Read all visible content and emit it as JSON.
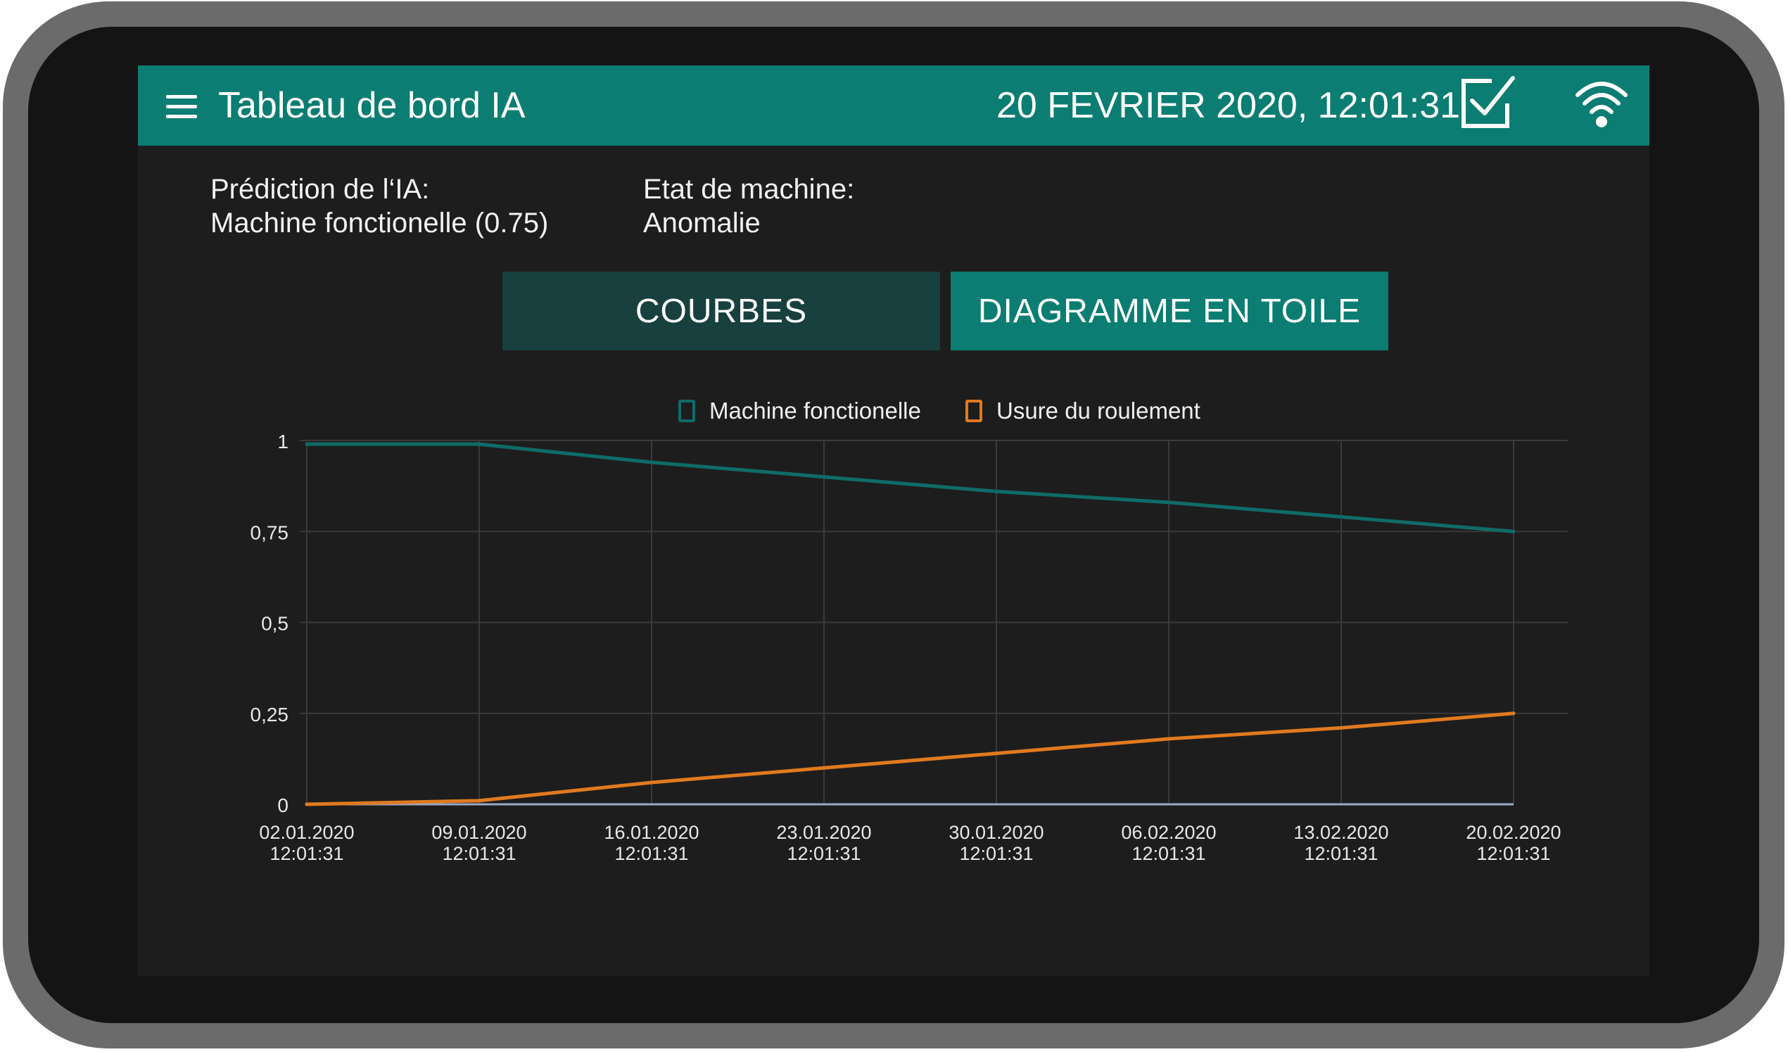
{
  "header": {
    "title": "Tableau de bord IA",
    "datetime": "20 FEVRIER 2020, 12:01:31"
  },
  "info": {
    "prediction_label": "Prédiction de l‘IA:",
    "prediction_value": "Machine fonctionelle (0.75)",
    "state_label": "Etat de machine:",
    "state_value": "Anomalie"
  },
  "tabs": [
    {
      "label": "COURBES",
      "active": true
    },
    {
      "label": "DIAGRAMME EN TOILE",
      "active": false
    }
  ],
  "icons": {
    "menu": "menu-icon",
    "check": "checkbox-check-icon",
    "wifi": "wifi-icon"
  },
  "colors": {
    "header": "#0b7d72",
    "background": "#1d1d1d",
    "series_machine": "#0f6b68",
    "series_usure": "#e07a20",
    "baseline": "#9aa9c6"
  },
  "chart_data": {
    "type": "line",
    "x_tick_labels": [
      {
        "date": "02.01.2020",
        "time": "12:01:31"
      },
      {
        "date": "09.01.2020",
        "time": "12:01:31"
      },
      {
        "date": "16.01.2020",
        "time": "12:01:31"
      },
      {
        "date": "23.01.2020",
        "time": "12:01:31"
      },
      {
        "date": "30.01.2020",
        "time": "12:01:31"
      },
      {
        "date": "06.02.2020",
        "time": "12:01:31"
      },
      {
        "date": "13.02.2020",
        "time": "12:01:31"
      },
      {
        "date": "20.02.2020",
        "time": "12:01:31"
      }
    ],
    "y_ticks": [
      {
        "value": 0,
        "label": "0"
      },
      {
        "value": 0.25,
        "label": "0,25"
      },
      {
        "value": 0.5,
        "label": "0,5"
      },
      {
        "value": 0.75,
        "label": "0,75"
      },
      {
        "value": 1,
        "label": "1"
      }
    ],
    "ylim": [
      0,
      1
    ],
    "x": [
      "02.01.2020",
      "09.01.2020",
      "16.01.2020",
      "23.01.2020",
      "30.01.2020",
      "06.02.2020",
      "13.02.2020",
      "20.02.2020"
    ],
    "series": [
      {
        "name": "Machine fonctionelle",
        "color": "#0f6b68",
        "values": [
          0.99,
          0.99,
          0.94,
          0.9,
          0.86,
          0.83,
          0.79,
          0.75
        ]
      },
      {
        "name": "Usure du roulement",
        "color": "#e07a20",
        "values": [
          0.0,
          0.01,
          0.06,
          0.1,
          0.14,
          0.18,
          0.21,
          0.25
        ]
      }
    ],
    "grid": true,
    "legend": "top-center"
  }
}
